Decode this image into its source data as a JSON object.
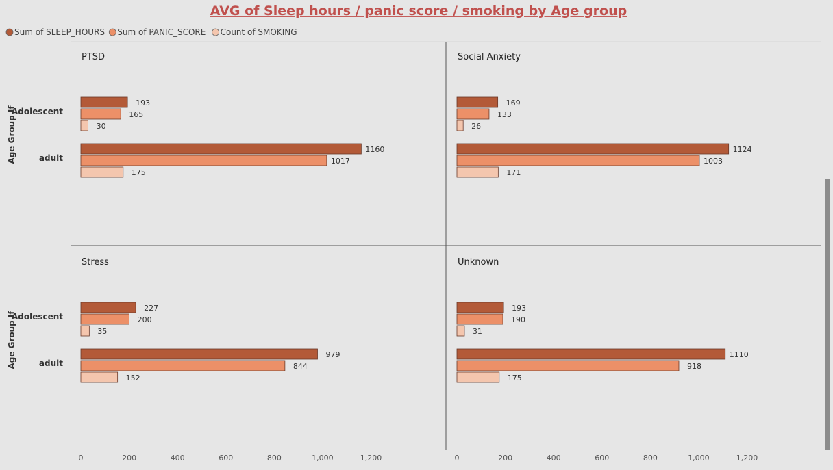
{
  "chart_data": {
    "type": "bar",
    "orientation": "horizontal",
    "title": "AVG of Sleep hours / panic score / smoking by Age group",
    "ylabel": "Age Group If",
    "categories": [
      "Adolescent",
      "adult"
    ],
    "legend_position": "top-left",
    "series_colors": [
      "#b35a38",
      "#ec9068",
      "#f4c6ae"
    ],
    "xlim": [
      0,
      1200
    ],
    "xticks": [
      0,
      200,
      400,
      600,
      800,
      1000,
      1200
    ],
    "xtick_labels": [
      "0",
      "200",
      "400",
      "600",
      "800",
      "1,000",
      "1,200"
    ],
    "series_names": [
      "Sum of SLEEP_HOURS",
      "Sum of PANIC_SCORE",
      "Count of SMOKING"
    ],
    "panels": [
      {
        "title": "PTSD",
        "values": [
          [
            193,
            165,
            30
          ],
          [
            1160,
            1017,
            175
          ]
        ]
      },
      {
        "title": "Social Anxiety",
        "values": [
          [
            169,
            133,
            26
          ],
          [
            1124,
            1003,
            171
          ]
        ]
      },
      {
        "title": "Stress",
        "values": [
          [
            227,
            200,
            35
          ],
          [
            979,
            844,
            152
          ]
        ]
      },
      {
        "title": "Unknown",
        "values": [
          [
            193,
            190,
            31
          ],
          [
            1110,
            918,
            175
          ]
        ]
      }
    ]
  }
}
